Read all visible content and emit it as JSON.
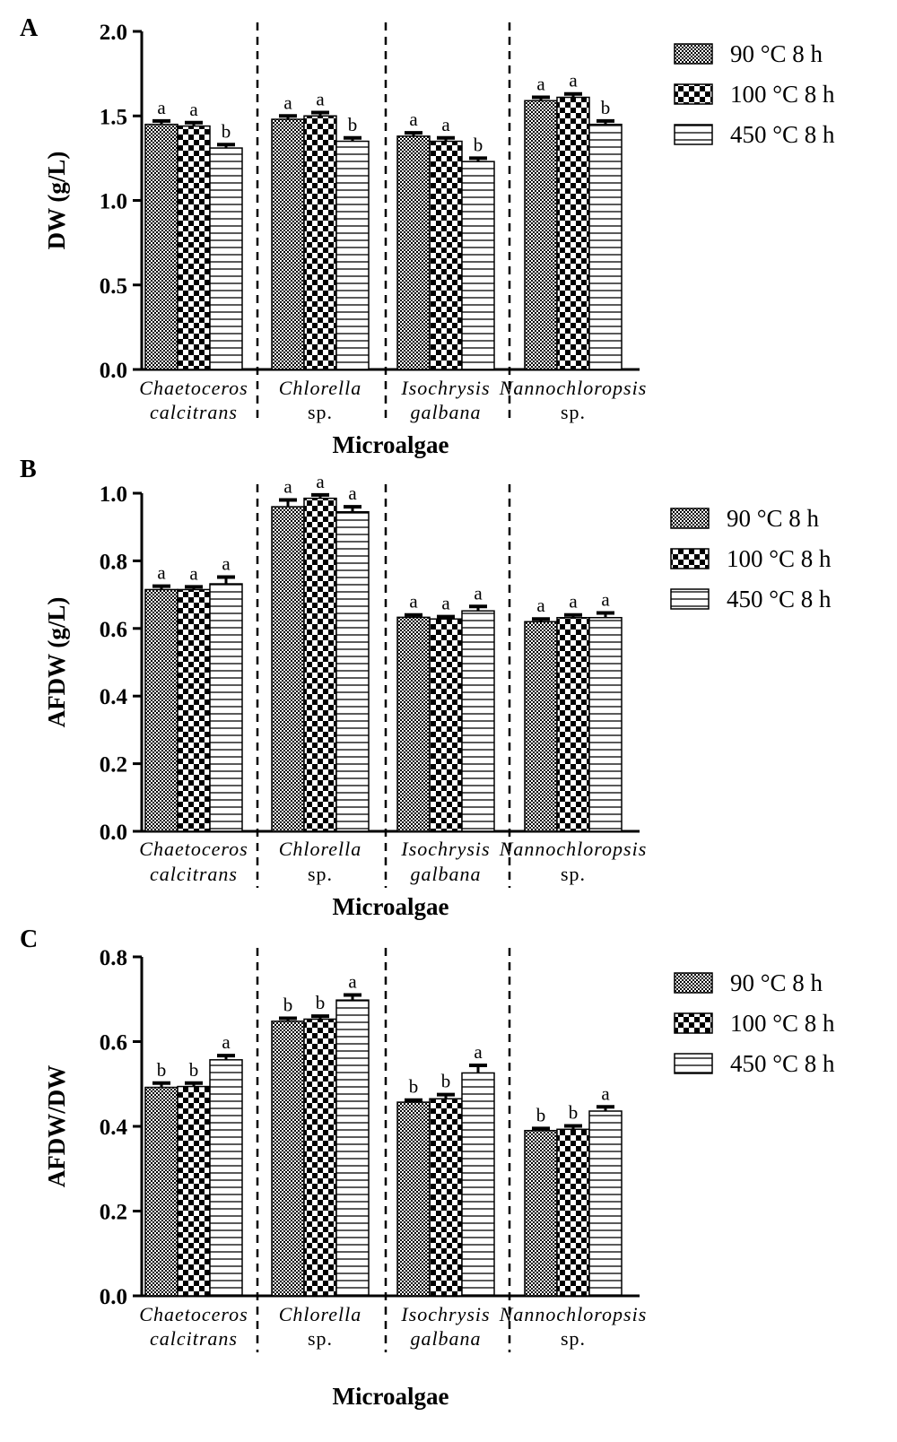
{
  "figure": {
    "legend": [
      "90 °C 8 h",
      "100 °C 8 h",
      "450 °C 8 h"
    ],
    "category_lines": [
      [
        "Chaetoceros",
        "calcitrans"
      ],
      [
        "Chlorella",
        "sp."
      ],
      [
        "Isochrysis",
        "galbana"
      ],
      [
        "Nannochloropsis",
        "sp."
      ]
    ]
  },
  "chart_data": [
    {
      "type": "bar",
      "panel": "A",
      "title": "",
      "xlabel": "Microalgae",
      "ylabel": "DW (g/L)",
      "ylim": [
        0,
        2.0
      ],
      "yticks": [
        "0.0",
        "0.5",
        "1.0",
        "1.5",
        "2.0"
      ],
      "categories": [
        "Chaetoceros calcitrans",
        "Chlorella sp.",
        "Isochrysis galbana",
        "Nannochloropsis sp."
      ],
      "series": [
        {
          "name": "90 °C 8 h",
          "values": [
            1.45,
            1.48,
            1.38,
            1.59
          ],
          "errors": [
            0.02,
            0.02,
            0.02,
            0.02
          ],
          "letters": [
            "a",
            "a",
            "a",
            "a"
          ]
        },
        {
          "name": "100 °C 8 h",
          "values": [
            1.44,
            1.5,
            1.35,
            1.61
          ],
          "errors": [
            0.02,
            0.02,
            0.02,
            0.02
          ],
          "letters": [
            "a",
            "a",
            "a",
            "a"
          ]
        },
        {
          "name": "450 °C 8 h",
          "values": [
            1.31,
            1.35,
            1.23,
            1.45
          ],
          "errors": [
            0.02,
            0.02,
            0.02,
            0.02
          ],
          "letters": [
            "b",
            "b",
            "b",
            "b"
          ]
        }
      ]
    },
    {
      "type": "bar",
      "panel": "B",
      "title": "",
      "xlabel": "Microalgae",
      "ylabel": "AFDW (g/L)",
      "ylim": [
        0,
        1.0
      ],
      "yticks": [
        "0.0",
        "0.2",
        "0.4",
        "0.6",
        "0.8",
        "1.0"
      ],
      "categories": [
        "Chaetoceros calcitrans",
        "Chlorella sp.",
        "Isochrysis galbana",
        "Nannochloropsis sp."
      ],
      "series": [
        {
          "name": "90 °C 8 h",
          "values": [
            0.715,
            0.96,
            0.633,
            0.62
          ],
          "errors": [
            0.01,
            0.02,
            0.007,
            0.008
          ],
          "letters": [
            "a",
            "a",
            "a",
            "a"
          ]
        },
        {
          "name": "100 °C 8 h",
          "values": [
            0.715,
            0.985,
            0.628,
            0.632
          ],
          "errors": [
            0.008,
            0.01,
            0.007,
            0.008
          ],
          "letters": [
            "a",
            "a",
            "a",
            "a"
          ]
        },
        {
          "name": "450 °C 8 h",
          "values": [
            0.732,
            0.945,
            0.652,
            0.632
          ],
          "errors": [
            0.02,
            0.015,
            0.013,
            0.014
          ],
          "letters": [
            "a",
            "a",
            "a",
            "a"
          ]
        }
      ]
    },
    {
      "type": "bar",
      "panel": "C",
      "title": "",
      "xlabel": "Microalgae",
      "ylabel": "AFDW/DW",
      "ylim": [
        0,
        0.8
      ],
      "yticks": [
        "0.0",
        "0.2",
        "0.4",
        "0.6",
        "0.8"
      ],
      "categories": [
        "Chaetoceros calcitrans",
        "Chlorella sp.",
        "Isochrysis galbana",
        "Nannochloropsis sp."
      ],
      "series": [
        {
          "name": "90 °C 8 h",
          "values": [
            0.492,
            0.648,
            0.457,
            0.39
          ],
          "errors": [
            0.01,
            0.007,
            0.005,
            0.005
          ],
          "letters": [
            "b",
            "b",
            "b",
            "b"
          ]
        },
        {
          "name": "100 °C 8 h",
          "values": [
            0.494,
            0.653,
            0.465,
            0.393
          ],
          "errors": [
            0.008,
            0.007,
            0.01,
            0.008
          ],
          "letters": [
            "b",
            "b",
            "b",
            "b"
          ]
        },
        {
          "name": "450 °C 8 h",
          "values": [
            0.557,
            0.698,
            0.526,
            0.436
          ],
          "errors": [
            0.01,
            0.012,
            0.018,
            0.01
          ],
          "letters": [
            "a",
            "a",
            "a",
            "a"
          ]
        }
      ]
    }
  ]
}
